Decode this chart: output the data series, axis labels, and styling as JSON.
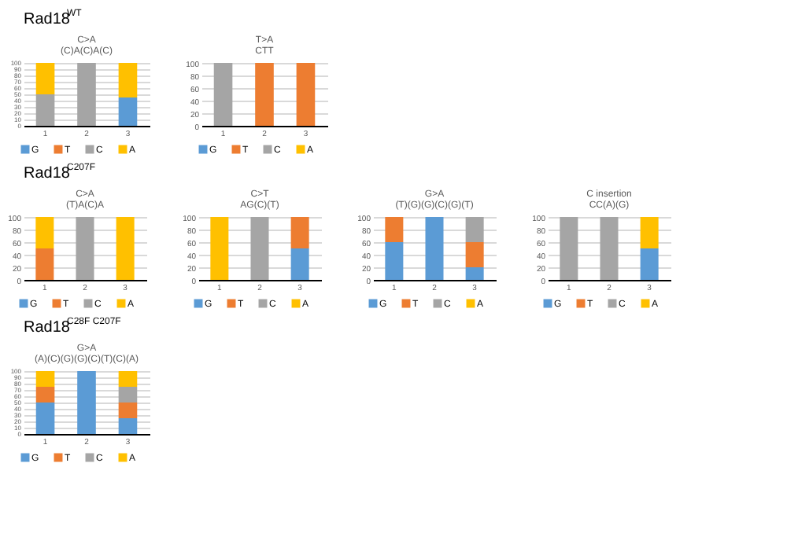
{
  "chart_data": [
    {
      "type": "bar",
      "stacked": true,
      "title": "C>A",
      "subtitle": "(C)A(C)A(C)",
      "annotations": [
        "Rad18$^{WT}$"
      ],
      "categories": [
        "1",
        "2",
        "3"
      ],
      "ylim": [
        0,
        100
      ],
      "yticks": [
        0,
        10,
        20,
        30,
        40,
        50,
        60,
        70,
        80,
        90,
        100
      ],
      "grid": "y",
      "legend": "bottom",
      "series": [
        {
          "name": "G",
          "color": "#5b9bd5",
          "values": [
            0,
            0,
            45
          ]
        },
        {
          "name": "T",
          "color": "#ed7d31",
          "values": [
            0,
            0,
            0
          ]
        },
        {
          "name": "C",
          "color": "#a5a5a5",
          "values": [
            50,
            100,
            0
          ]
        },
        {
          "name": "A",
          "color": "#ffc000",
          "values": [
            50,
            0,
            55
          ]
        }
      ]
    },
    {
      "type": "bar",
      "stacked": true,
      "title": "T>A",
      "subtitle": "CTT",
      "categories": [
        "1",
        "2",
        "3"
      ],
      "ylim": [
        0,
        100
      ],
      "yticks": [
        0,
        20,
        40,
        60,
        80,
        100
      ],
      "grid": "y",
      "legend": "bottom",
      "series": [
        {
          "name": "G",
          "color": "#5b9bd5",
          "values": [
            0,
            0,
            0
          ]
        },
        {
          "name": "T",
          "color": "#ed7d31",
          "values": [
            0,
            100,
            100
          ]
        },
        {
          "name": "C",
          "color": "#a5a5a5",
          "values": [
            100,
            0,
            0
          ]
        },
        {
          "name": "A",
          "color": "#ffc000",
          "values": [
            0,
            0,
            0
          ]
        }
      ]
    },
    {
      "type": "bar",
      "stacked": true,
      "title": "C>A",
      "subtitle": "(T)A(C)A",
      "annotations": [
        "Rad18$^{C207F}$"
      ],
      "categories": [
        "1",
        "2",
        "3"
      ],
      "ylim": [
        0,
        100
      ],
      "yticks": [
        0,
        20,
        40,
        60,
        80,
        100
      ],
      "grid": "y",
      "legend": "bottom",
      "series": [
        {
          "name": "G",
          "color": "#5b9bd5",
          "values": [
            0,
            0,
            0
          ]
        },
        {
          "name": "T",
          "color": "#ed7d31",
          "values": [
            50,
            0,
            0
          ]
        },
        {
          "name": "C",
          "color": "#a5a5a5",
          "values": [
            0,
            100,
            0
          ]
        },
        {
          "name": "A",
          "color": "#ffc000",
          "values": [
            50,
            0,
            100
          ]
        }
      ]
    },
    {
      "type": "bar",
      "stacked": true,
      "title": "C>T",
      "subtitle": "AG(C)(T)",
      "categories": [
        "1",
        "2",
        "3"
      ],
      "ylim": [
        0,
        100
      ],
      "yticks": [
        0,
        20,
        40,
        60,
        80,
        100
      ],
      "grid": "y",
      "legend": "bottom",
      "series": [
        {
          "name": "G",
          "color": "#5b9bd5",
          "values": [
            0,
            0,
            50
          ]
        },
        {
          "name": "T",
          "color": "#ed7d31",
          "values": [
            0,
            0,
            50
          ]
        },
        {
          "name": "C",
          "color": "#a5a5a5",
          "values": [
            0,
            100,
            0
          ]
        },
        {
          "name": "A",
          "color": "#ffc000",
          "values": [
            100,
            0,
            0
          ]
        }
      ]
    },
    {
      "type": "bar",
      "stacked": true,
      "title": "G>A",
      "subtitle": "(T)(G)(G)(C)(G)(T)",
      "categories": [
        "1",
        "2",
        "3"
      ],
      "ylim": [
        0,
        100
      ],
      "yticks": [
        0,
        20,
        40,
        60,
        80,
        100
      ],
      "grid": "y",
      "legend": "bottom",
      "series": [
        {
          "name": "G",
          "color": "#5b9bd5",
          "values": [
            60,
            100,
            20
          ]
        },
        {
          "name": "T",
          "color": "#ed7d31",
          "values": [
            40,
            0,
            40
          ]
        },
        {
          "name": "C",
          "color": "#a5a5a5",
          "values": [
            0,
            0,
            40
          ]
        },
        {
          "name": "A",
          "color": "#ffc000",
          "values": [
            0,
            0,
            0
          ]
        }
      ]
    },
    {
      "type": "bar",
      "stacked": true,
      "title": "C insertion",
      "subtitle": "CC(A)(G)",
      "categories": [
        "1",
        "2",
        "3"
      ],
      "ylim": [
        0,
        100
      ],
      "yticks": [
        0,
        20,
        40,
        60,
        80,
        100
      ],
      "grid": "y",
      "legend": "bottom",
      "series": [
        {
          "name": "G",
          "color": "#5b9bd5",
          "values": [
            0,
            0,
            50
          ]
        },
        {
          "name": "T",
          "color": "#ed7d31",
          "values": [
            0,
            0,
            0
          ]
        },
        {
          "name": "C",
          "color": "#a5a5a5",
          "values": [
            100,
            100,
            0
          ]
        },
        {
          "name": "A",
          "color": "#ffc000",
          "values": [
            0,
            0,
            50
          ]
        }
      ]
    },
    {
      "type": "bar",
      "stacked": true,
      "title": "G>A",
      "subtitle": "(A)(C)(G)(G)(C)(T)(C)(A)",
      "annotations": [
        "Rad18$^{C28F C207F}$"
      ],
      "categories": [
        "1",
        "2",
        "3"
      ],
      "ylim": [
        0,
        100
      ],
      "yticks": [
        0,
        10,
        20,
        30,
        40,
        50,
        60,
        70,
        80,
        90,
        100
      ],
      "grid": "y",
      "legend": "bottom",
      "series": [
        {
          "name": "G",
          "color": "#5b9bd5",
          "values": [
            50,
            100,
            25
          ]
        },
        {
          "name": "T",
          "color": "#ed7d31",
          "values": [
            25,
            0,
            25
          ]
        },
        {
          "name": "C",
          "color": "#a5a5a5",
          "values": [
            0,
            0,
            25
          ]
        },
        {
          "name": "A",
          "color": "#ffc000",
          "values": [
            25,
            0,
            25
          ]
        }
      ]
    }
  ]
}
